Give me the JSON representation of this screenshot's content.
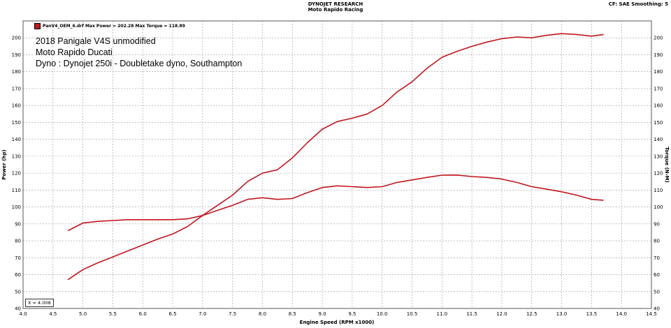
{
  "header": {
    "company": "DYNOJET RESEARCH",
    "shop": "Moto Rapido Racing",
    "correction": "CF: SAE  Smoothing: 5"
  },
  "legend": {
    "entry": "PanV4_OEM_6.drf Max Power = 202.28 Max Torque = 118.89"
  },
  "annotations": [
    "2018 Panigale V4S unmodified",
    "Moto Rapido Ducati",
    "Dyno : Dynojet 250i - Doubletake dyno, Southampton"
  ],
  "cursor": {
    "label": "X = 4.008"
  },
  "colors": {
    "series": "#c0161e",
    "grid": "#9a9a9a"
  },
  "chart_data": {
    "type": "line",
    "xlabel": "Engine Speed (RPM x1000)",
    "ylabel_left": "Power (hp)",
    "ylabel_right": "Torque (N-M)",
    "xlim": [
      4.0,
      14.5
    ],
    "ylim": [
      40,
      210
    ],
    "x_ticks": [
      "4.0",
      "4.5",
      "5.0",
      "5.5",
      "6.0",
      "6.5",
      "7.0",
      "7.5",
      "8.0",
      "8.5",
      "9.0",
      "9.5",
      "10.0",
      "10.5",
      "11.0",
      "11.5",
      "12.0",
      "12.5",
      "13.0",
      "13.5",
      "14.0",
      "14.5"
    ],
    "y_ticks": [
      "40",
      "50",
      "60",
      "70",
      "80",
      "90",
      "100",
      "110",
      "120",
      "130",
      "140",
      "150",
      "160",
      "170",
      "180",
      "190",
      "200"
    ],
    "grid": true,
    "legend_position": "top-left",
    "series": [
      {
        "key": "power",
        "x": [
          4.75,
          5.0,
          5.25,
          5.5,
          5.75,
          6.0,
          6.25,
          6.5,
          6.75,
          7.0,
          7.25,
          7.5,
          7.75,
          8.0,
          8.25,
          8.5,
          8.75,
          9.0,
          9.25,
          9.5,
          9.75,
          10.0,
          10.25,
          10.5,
          10.75,
          11.0,
          11.25,
          11.5,
          11.75,
          12.0,
          12.25,
          12.5,
          12.75,
          13.0,
          13.25,
          13.5,
          13.7
        ],
        "values": [
          57,
          63,
          67,
          70.5,
          74,
          77.5,
          81,
          84,
          88.5,
          95,
          101,
          107,
          115,
          120,
          122,
          129,
          138,
          146,
          150.5,
          152.5,
          155,
          160,
          168,
          174,
          182,
          188.5,
          192,
          195,
          197.5,
          199.5,
          200.5,
          200,
          201.5,
          202.5,
          202,
          201,
          202
        ]
      },
      {
        "key": "torque",
        "x": [
          4.75,
          5.0,
          5.25,
          5.5,
          5.75,
          6.0,
          6.25,
          6.5,
          6.75,
          7.0,
          7.25,
          7.5,
          7.75,
          8.0,
          8.25,
          8.5,
          8.75,
          9.0,
          9.25,
          9.5,
          9.75,
          10.0,
          10.25,
          10.5,
          10.75,
          11.0,
          11.25,
          11.5,
          11.75,
          12.0,
          12.25,
          12.5,
          12.75,
          13.0,
          13.25,
          13.5,
          13.7
        ],
        "values": [
          86,
          90.5,
          91.5,
          92,
          92.5,
          92.5,
          92.5,
          92.5,
          93,
          95,
          98,
          101,
          104.5,
          105.5,
          104.5,
          105,
          108.5,
          111.5,
          112.5,
          112,
          111.5,
          112,
          114.5,
          116,
          117.5,
          118.8,
          118.9,
          118,
          117.5,
          116.5,
          114.5,
          112,
          110.5,
          109,
          107,
          104.5,
          104
        ]
      }
    ]
  }
}
